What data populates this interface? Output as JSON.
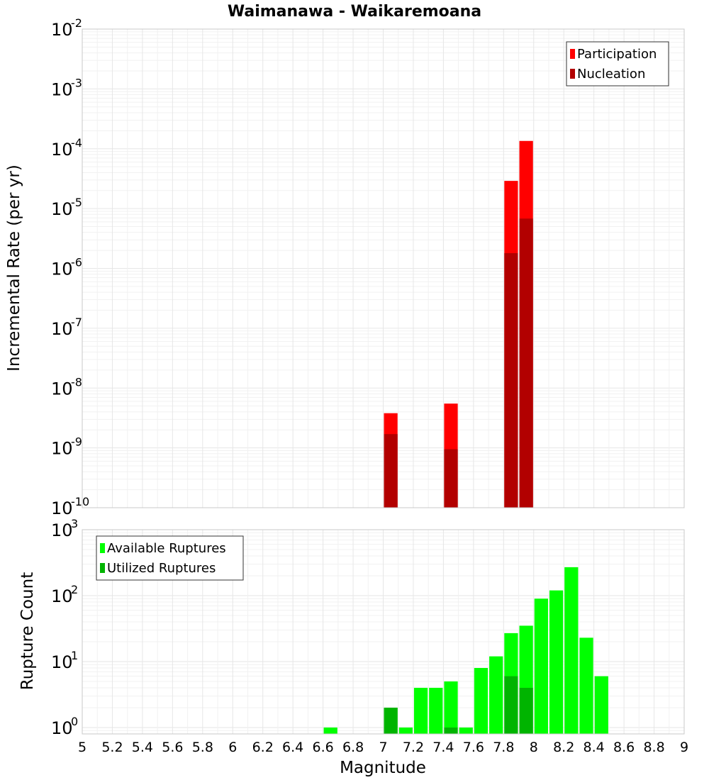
{
  "title": "Waimanawa - Waikaremoana",
  "xlabel": "Magnitude",
  "chart_data": [
    {
      "type": "bar",
      "scale": "log",
      "ylabel": "Incremental Rate (per yr)",
      "ylim": [
        1e-10,
        0.01
      ],
      "xlim": [
        5,
        9
      ],
      "bar_width": 0.1,
      "legend_position": "top-right",
      "series": [
        {
          "name": "Participation",
          "color": "#ff0000",
          "x": [
            7.05,
            7.45,
            7.85,
            7.95
          ],
          "values": [
            3.8e-09,
            5.5e-09,
            2.9e-05,
            0.000135
          ]
        },
        {
          "name": "Nucleation",
          "color": "#b20000",
          "x": [
            7.05,
            7.45,
            7.85,
            7.95
          ],
          "values": [
            1.7e-09,
            9.5e-10,
            1.8e-06,
            6.8e-06
          ]
        }
      ]
    },
    {
      "type": "bar",
      "scale": "log",
      "ylabel": "Rupture Count",
      "ylim": [
        0.8,
        1000
      ],
      "xlim": [
        5,
        9
      ],
      "bar_width": 0.1,
      "legend_position": "top-left",
      "series": [
        {
          "name": "Available Ruptures",
          "color": "#00ff00",
          "x": [
            6.65,
            7.05,
            7.15,
            7.25,
            7.35,
            7.45,
            7.55,
            7.65,
            7.75,
            7.85,
            7.95,
            8.05,
            8.15,
            8.25,
            8.35,
            8.45
          ],
          "values": [
            1,
            2,
            1,
            4,
            4,
            5,
            1,
            8,
            12,
            27,
            35,
            90,
            120,
            270,
            23,
            6
          ]
        },
        {
          "name": "Utilized Ruptures",
          "color": "#00b400",
          "x": [
            7.05,
            7.45,
            7.85,
            7.95
          ],
          "values": [
            2,
            1,
            6,
            4
          ]
        }
      ]
    }
  ],
  "x_ticks": [
    "5",
    "5.2",
    "5.4",
    "5.6",
    "5.8",
    "6",
    "6.2",
    "6.4",
    "6.6",
    "6.8",
    "7",
    "7.2",
    "7.4",
    "7.6",
    "7.8",
    "8",
    "8.2",
    "8.4",
    "8.6",
    "8.8",
    "9"
  ],
  "rate_ticks": [
    {
      "base": "10",
      "exp": "-10"
    },
    {
      "base": "10",
      "exp": "-9"
    },
    {
      "base": "10",
      "exp": "-8"
    },
    {
      "base": "10",
      "exp": "-7"
    },
    {
      "base": "10",
      "exp": "-6"
    },
    {
      "base": "10",
      "exp": "-5"
    },
    {
      "base": "10",
      "exp": "-4"
    },
    {
      "base": "10",
      "exp": "-3"
    },
    {
      "base": "10",
      "exp": "-2"
    }
  ],
  "count_ticks": [
    {
      "base": "10",
      "exp": "0"
    },
    {
      "base": "10",
      "exp": "1"
    },
    {
      "base": "10",
      "exp": "2"
    },
    {
      "base": "10",
      "exp": "3"
    }
  ]
}
